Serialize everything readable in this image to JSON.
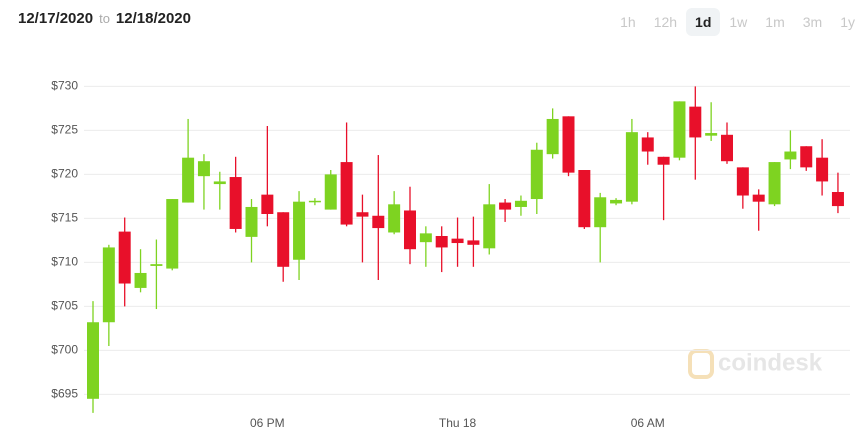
{
  "header": {
    "from": "12/17/2020",
    "to_word": "to",
    "to": "12/18/2020",
    "ranges": [
      "1h",
      "12h",
      "1d",
      "1w",
      "1m",
      "3m",
      "1y"
    ],
    "active_range": "1d"
  },
  "watermark": "coindesk",
  "chart_data": {
    "type": "candlestick",
    "up_color": "#7ed321",
    "down_color": "#e8102a",
    "grid": true,
    "categories": [
      null,
      null,
      null,
      null,
      null,
      null,
      null,
      null,
      null,
      null,
      null,
      "06 PM",
      null,
      null,
      null,
      null,
      null,
      null,
      null,
      null,
      null,
      null,
      null,
      "Thu 18",
      null,
      null,
      null,
      null,
      null,
      null,
      null,
      null,
      null,
      null,
      null,
      "06 AM",
      null,
      null,
      null,
      null,
      null,
      null,
      null,
      null,
      null,
      null,
      null,
      null
    ],
    "open": [
      694.5,
      703.2,
      713.5,
      707.1,
      709.6,
      709.3,
      716.8,
      719.8,
      718.9,
      719.7,
      712.9,
      717.7,
      715.7,
      710.3,
      716.9,
      716.0,
      721.4,
      715.7,
      715.3,
      713.4,
      715.9,
      712.3,
      713.0,
      712.7,
      712.5,
      711.6,
      716.8,
      716.3,
      717.2,
      722.3,
      726.6,
      720.5,
      714.0,
      716.7,
      716.9,
      724.2,
      722.0,
      721.9,
      727.7,
      724.4,
      724.5,
      720.8,
      717.7,
      716.6,
      721.7,
      723.2,
      721.9,
      718.0
    ],
    "high": [
      705.6,
      712.0,
      715.1,
      711.5,
      712.6,
      717.2,
      726.3,
      722.3,
      720.3,
      722.0,
      717.2,
      725.5,
      715.7,
      718.1,
      717.3,
      720.5,
      725.9,
      717.7,
      722.2,
      718.1,
      718.6,
      714.1,
      714.1,
      715.1,
      715.2,
      718.9,
      717.2,
      717.6,
      723.6,
      727.5,
      726.6,
      720.5,
      717.9,
      717.3,
      726.3,
      724.8,
      722.0,
      728.3,
      730.0,
      728.2,
      725.9,
      720.8,
      718.3,
      721.4,
      725.0,
      723.2,
      724.0,
      720.2
    ],
    "low": [
      692.9,
      700.5,
      705.0,
      706.6,
      704.7,
      709.1,
      716.8,
      716.0,
      716.0,
      713.4,
      710.0,
      714.1,
      707.8,
      708.0,
      716.5,
      716.0,
      714.1,
      710.0,
      708.0,
      713.2,
      709.8,
      709.5,
      708.9,
      709.5,
      709.5,
      710.9,
      714.6,
      715.3,
      715.5,
      721.8,
      719.8,
      713.8,
      710.0,
      716.5,
      716.6,
      721.1,
      714.8,
      721.6,
      719.4,
      723.8,
      721.2,
      716.1,
      713.6,
      716.4,
      720.6,
      720.4,
      717.6,
      715.6
    ],
    "close": [
      703.2,
      711.7,
      707.6,
      708.8,
      709.8,
      717.2,
      721.9,
      721.5,
      719.2,
      713.8,
      716.3,
      715.5,
      709.5,
      716.9,
      717.0,
      720.0,
      714.3,
      715.2,
      713.9,
      716.6,
      711.5,
      713.3,
      711.7,
      712.2,
      712.0,
      716.6,
      716.0,
      717.0,
      722.8,
      726.3,
      720.2,
      714.0,
      717.4,
      717.1,
      724.8,
      722.6,
      721.1,
      728.3,
      724.2,
      724.7,
      721.5,
      717.6,
      716.9,
      721.4,
      722.6,
      720.8,
      719.2,
      716.4
    ],
    "ylim": [
      693.5,
      733.5
    ],
    "yticks": [
      {
        "value": 695,
        "label": "$695"
      },
      {
        "value": 700,
        "label": "$700"
      },
      {
        "value": 705,
        "label": "$705"
      },
      {
        "value": 710,
        "label": "$710"
      },
      {
        "value": 715,
        "label": "$715"
      },
      {
        "value": 720,
        "label": "$720"
      },
      {
        "value": 725,
        "label": "$725"
      },
      {
        "value": 730,
        "label": "$730"
      }
    ]
  }
}
